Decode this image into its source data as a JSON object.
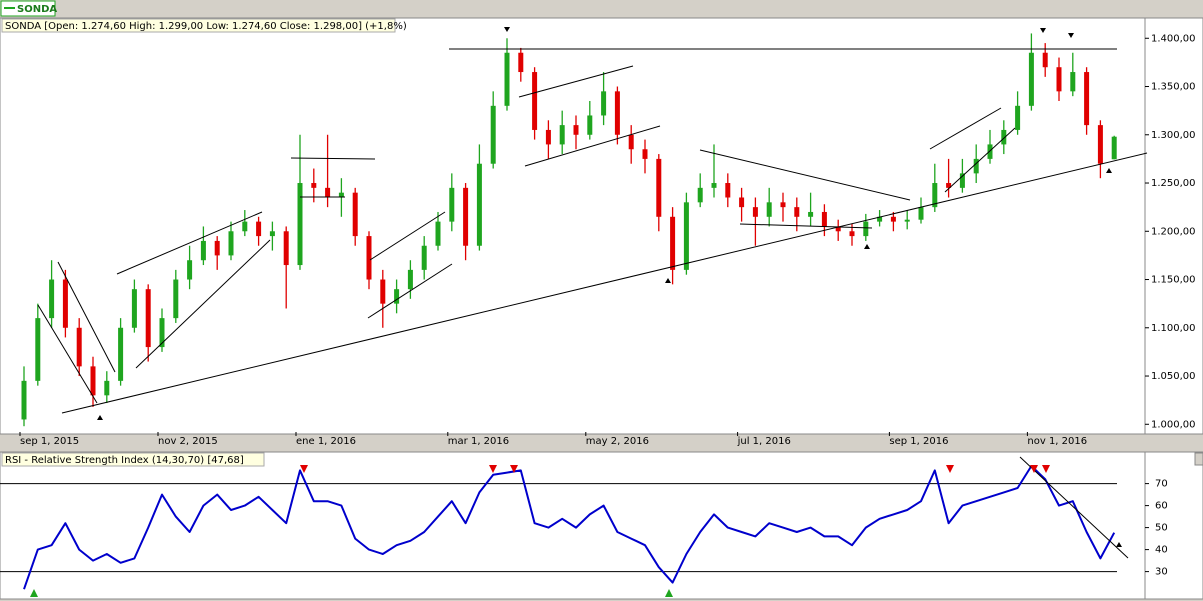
{
  "chart_data": [
    {
      "type": "candlestick",
      "legend": "SONDA",
      "info": "SONDA [Open: 1.274,60  High: 1.299,00  Low: 1.274,60  Close: 1.298,00]  (+1,8%)",
      "categories": [
        "sep 1, 2015",
        null,
        null,
        null,
        null,
        null,
        null,
        null,
        null,
        null,
        "nov 2, 2015",
        null,
        null,
        null,
        null,
        null,
        null,
        null,
        null,
        null,
        "ene 1, 2016",
        null,
        null,
        null,
        null,
        null,
        null,
        null,
        null,
        null,
        null,
        "mar 1, 2016",
        null,
        null,
        null,
        null,
        null,
        null,
        null,
        null,
        null,
        "may 2, 2016",
        null,
        null,
        null,
        null,
        null,
        null,
        null,
        null,
        null,
        null,
        "jul 1, 2016",
        null,
        null,
        null,
        null,
        null,
        null,
        null,
        null,
        null,
        null,
        "sep 1, 2016",
        null,
        null,
        null,
        null,
        null,
        null,
        null,
        null,
        null,
        "nov 1, 2016",
        null,
        null,
        null,
        null,
        null,
        null
      ],
      "open": [
        1005,
        1045,
        1110,
        1150,
        1100,
        1060,
        1030,
        1045,
        1100,
        1140,
        1080,
        1110,
        1150,
        1170,
        1190,
        1175,
        1200,
        1210,
        1195,
        1200,
        1165,
        1250,
        1245,
        1235,
        1240,
        1195,
        1150,
        1125,
        1140,
        1160,
        1185,
        1210,
        1245,
        1185,
        1270,
        1330,
        1385,
        1365,
        1305,
        1290,
        1310,
        1300,
        1320,
        1345,
        1300,
        1285,
        1275,
        1215,
        1160,
        1230,
        1245,
        1250,
        1235,
        1225,
        1215,
        1230,
        1225,
        1215,
        1220,
        1205,
        1200,
        1195,
        1210,
        1215,
        1210,
        1212,
        1225,
        1250,
        1245,
        1260,
        1275,
        1290,
        1305,
        1330,
        1385,
        1370,
        1345,
        1365,
        1310,
        1274.6
      ],
      "high": [
        1060,
        1125,
        1170,
        1160,
        1110,
        1070,
        1055,
        1110,
        1150,
        1145,
        1120,
        1160,
        1185,
        1205,
        1195,
        1210,
        1222,
        1215,
        1210,
        1205,
        1300,
        1265,
        1300,
        1255,
        1245,
        1200,
        1160,
        1150,
        1170,
        1195,
        1220,
        1260,
        1250,
        1290,
        1345,
        1400,
        1390,
        1370,
        1315,
        1325,
        1320,
        1335,
        1365,
        1350,
        1310,
        1295,
        1280,
        1225,
        1240,
        1260,
        1290,
        1260,
        1245,
        1235,
        1245,
        1240,
        1235,
        1240,
        1228,
        1212,
        1208,
        1218,
        1222,
        1220,
        1222,
        1235,
        1270,
        1275,
        1275,
        1290,
        1305,
        1315,
        1345,
        1405,
        1395,
        1380,
        1385,
        1370,
        1315,
        1299
      ],
      "low": [
        998,
        1040,
        1100,
        1090,
        1050,
        1018,
        1022,
        1040,
        1095,
        1065,
        1075,
        1105,
        1140,
        1165,
        1160,
        1170,
        1195,
        1185,
        1180,
        1120,
        1160,
        1230,
        1225,
        1215,
        1185,
        1140,
        1100,
        1115,
        1130,
        1150,
        1180,
        1200,
        1170,
        1180,
        1265,
        1325,
        1355,
        1295,
        1275,
        1280,
        1285,
        1295,
        1310,
        1290,
        1270,
        1260,
        1200,
        1145,
        1155,
        1225,
        1235,
        1225,
        1210,
        1185,
        1205,
        1210,
        1200,
        1205,
        1195,
        1190,
        1185,
        1190,
        1205,
        1200,
        1202,
        1208,
        1220,
        1235,
        1240,
        1250,
        1270,
        1280,
        1300,
        1325,
        1360,
        1335,
        1340,
        1300,
        1255,
        1274.6
      ],
      "close": [
        1045,
        1110,
        1150,
        1100,
        1060,
        1030,
        1045,
        1100,
        1140,
        1080,
        1110,
        1150,
        1170,
        1190,
        1175,
        1200,
        1210,
        1195,
        1200,
        1165,
        1250,
        1245,
        1235,
        1240,
        1195,
        1150,
        1125,
        1140,
        1160,
        1185,
        1210,
        1245,
        1185,
        1270,
        1330,
        1385,
        1365,
        1305,
        1290,
        1310,
        1300,
        1320,
        1345,
        1300,
        1285,
        1275,
        1215,
        1160,
        1230,
        1245,
        1250,
        1235,
        1225,
        1215,
        1230,
        1225,
        1215,
        1220,
        1205,
        1200,
        1195,
        1210,
        1215,
        1210,
        1212,
        1225,
        1250,
        1245,
        1260,
        1275,
        1290,
        1305,
        1330,
        1385,
        1370,
        1345,
        1365,
        1310,
        1270,
        1298
      ],
      "up_color": "#1fa51f",
      "down_color": "#e00000",
      "ylim": [
        992,
        1421
      ],
      "yticks": [
        {
          "value": 1000,
          "label": "1.000,00"
        },
        {
          "value": 1050,
          "label": "1.050,00"
        },
        {
          "value": 1100,
          "label": "1.100,00"
        },
        {
          "value": 1150,
          "label": "1.150,00"
        },
        {
          "value": 1200,
          "label": "1.200,00"
        },
        {
          "value": 1250,
          "label": "1.250,00"
        },
        {
          "value": 1300,
          "label": "1.300,00"
        },
        {
          "value": 1350,
          "label": "1.350,00"
        },
        {
          "value": 1400,
          "label": "1.400,00"
        }
      ]
    },
    {
      "type": "line",
      "title": "RSI - Relative Strength Index (14,30,70) [47,68]",
      "color": "#0000cc",
      "values": [
        22,
        40,
        42,
        52,
        40,
        35,
        38,
        34,
        36,
        50,
        65,
        55,
        48,
        60,
        65,
        58,
        60,
        64,
        58,
        52,
        76,
        62,
        62,
        60,
        45,
        40,
        38,
        42,
        44,
        48,
        55,
        62,
        52,
        66,
        74,
        75,
        76,
        52,
        50,
        54,
        50,
        56,
        60,
        48,
        45,
        42,
        32,
        25,
        38,
        48,
        56,
        50,
        48,
        46,
        52,
        50,
        48,
        50,
        46,
        46,
        42,
        50,
        54,
        56,
        58,
        62,
        76,
        52,
        60,
        62,
        64,
        66,
        68,
        78,
        72,
        60,
        62,
        48,
        36,
        47.68
      ],
      "ylim": [
        18,
        83
      ],
      "yticks": [
        30,
        40,
        50,
        60,
        70
      ],
      "reference_lines": [
        30,
        70
      ]
    }
  ]
}
